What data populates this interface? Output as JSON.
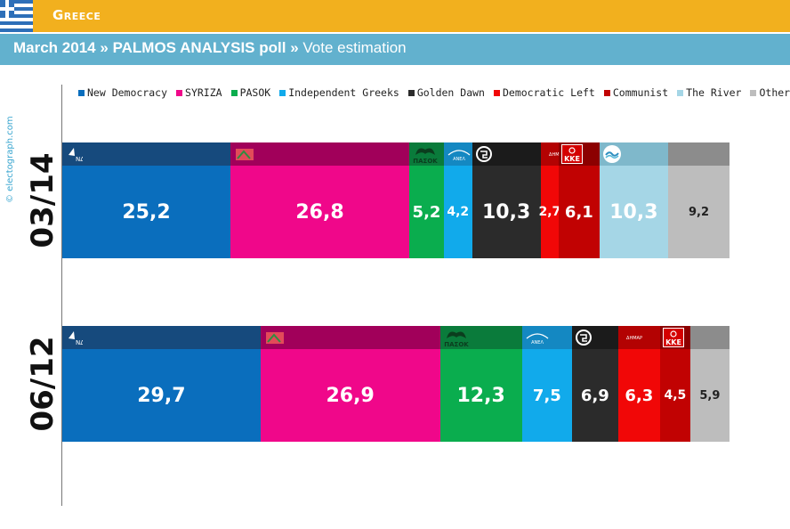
{
  "header": {
    "country": "Greece"
  },
  "subheader": {
    "date": "March 2014",
    "poll": "PALMOS ANALYSIS poll",
    "type": "Vote estimation",
    "separator": "»"
  },
  "watermark": "© electograph.com",
  "chart_data": {
    "type": "bar",
    "layout": "stacked-horizontal",
    "title": "March 2014 » PALMOS ANALYSIS poll » Vote estimation",
    "series": [
      {
        "name": "New Democracy",
        "color": "#0a6ebd",
        "head": "#164a7d",
        "logo": "nd-logo"
      },
      {
        "name": "SYRIZA",
        "color": "#f0078a",
        "head": "#a1005a",
        "logo": "syriza-logo"
      },
      {
        "name": "PASOK",
        "color": "#0aad4e",
        "head": "#0a7b3b",
        "logo": "pasok-logo",
        "logo_text": "ΠΑΣΟΚ"
      },
      {
        "name": "Independent Greeks",
        "color": "#11aaeb",
        "head": "#1488c2",
        "logo": "anel-logo"
      },
      {
        "name": "Golden Dawn",
        "color": "#2b2b2b",
        "head": "#1b1b1b",
        "logo": "golden-dawn-logo"
      },
      {
        "name": "Democratic Left",
        "color": "#f10707",
        "head": "#b30202",
        "logo": "dimar-logo"
      },
      {
        "name": "Communist",
        "color": "#c10202",
        "head": "#8c0000",
        "logo": "kke-logo",
        "logo_text": "KKE"
      },
      {
        "name": "The River",
        "color": "#a5d6e6",
        "head": "#7fb8cb",
        "logo": "river-logo"
      },
      {
        "name": "Others",
        "color": "#bdbdbd",
        "head": "#8c8c8c",
        "logo": ""
      }
    ],
    "periods": [
      {
        "label": "03/14",
        "order": [
          "New Democracy",
          "SYRIZA",
          "PASOK",
          "Independent Greeks",
          "Golden Dawn",
          "Democratic Left",
          "Communist",
          "The River",
          "Others"
        ],
        "values": [
          25.2,
          26.8,
          5.2,
          4.2,
          10.3,
          2.7,
          6.1,
          10.3,
          9.2
        ],
        "labels": [
          "25,2",
          "26,8",
          "5,2",
          "4,2",
          "10,3",
          "2,7",
          "6,1",
          "10,3",
          "9,2"
        ]
      },
      {
        "label": "06/12",
        "order": [
          "New Democracy",
          "SYRIZA",
          "PASOK",
          "Independent Greeks",
          "Golden Dawn",
          "Democratic Left",
          "Communist",
          "Others"
        ],
        "values": [
          29.7,
          26.9,
          12.3,
          7.5,
          6.9,
          6.3,
          4.5,
          5.9
        ],
        "labels": [
          "29,7",
          "26,9",
          "12,3",
          "7,5",
          "6,9",
          "6,3",
          "4,5",
          "5,9"
        ]
      }
    ],
    "xlim": [
      0,
      100
    ],
    "legend_position": "top"
  }
}
